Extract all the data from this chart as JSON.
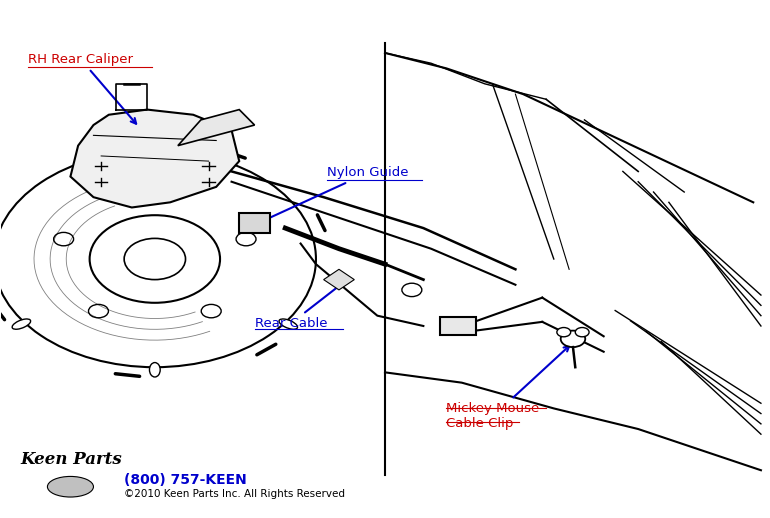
{
  "bg_color": "#ffffff",
  "label_color_red": "#cc0000",
  "label_color_blue": "#0000cc",
  "line_color": "#000000",
  "phone": "(800) 757-KEEN",
  "copyright": "©2010 Keen Parts Inc. All Rights Reserved",
  "labels": {
    "rh_rear_caliper": "RH Rear Caliper",
    "nylon_guide": "Nylon Guide",
    "rear_cable": "Rear Cable",
    "mickey_mouse": "Mickey Mouse\nCable Clip"
  }
}
